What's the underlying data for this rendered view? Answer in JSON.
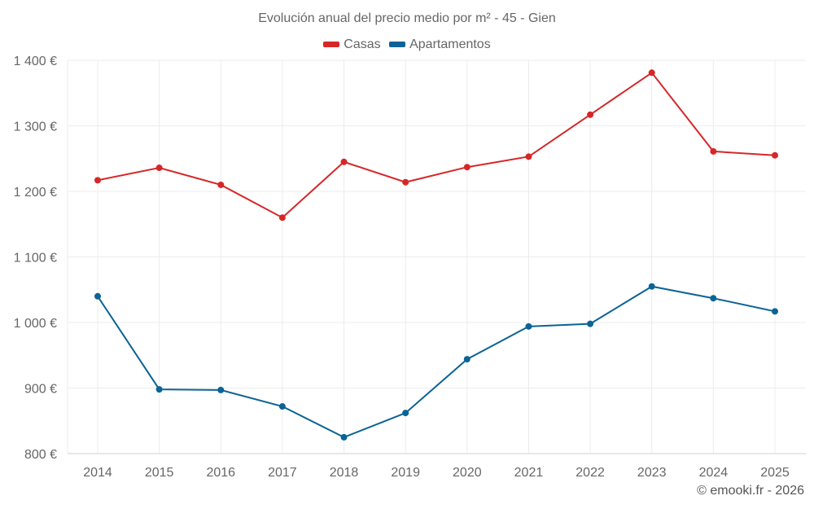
{
  "chart_data": {
    "type": "line",
    "title": "Evolución anual del precio medio por m² - 45 - Gien",
    "xlabel": "",
    "ylabel": "",
    "x": [
      "2014",
      "2015",
      "2016",
      "2017",
      "2018",
      "2019",
      "2020",
      "2021",
      "2022",
      "2023",
      "2024",
      "2025"
    ],
    "y_ticks": [
      "800 €",
      "900 €",
      "1 000 €",
      "1 100 €",
      "1 200 €",
      "1 300 €",
      "1 400 €"
    ],
    "y_tick_values": [
      800,
      900,
      1000,
      1100,
      1200,
      1300,
      1400
    ],
    "ylim": [
      800,
      1400
    ],
    "grid": true,
    "legend_position": "top",
    "series": [
      {
        "name": "Casas",
        "color": "#d62728",
        "values": [
          1217,
          1236,
          1210,
          1160,
          1245,
          1214,
          1237,
          1253,
          1317,
          1381,
          1261,
          1255
        ]
      },
      {
        "name": "Apartamentos",
        "color": "#0b6396",
        "values": [
          1040,
          898,
          897,
          872,
          825,
          862,
          944,
          994,
          998,
          1055,
          1037,
          1017
        ]
      }
    ]
  },
  "credit": "© emooki.fr - 2026"
}
